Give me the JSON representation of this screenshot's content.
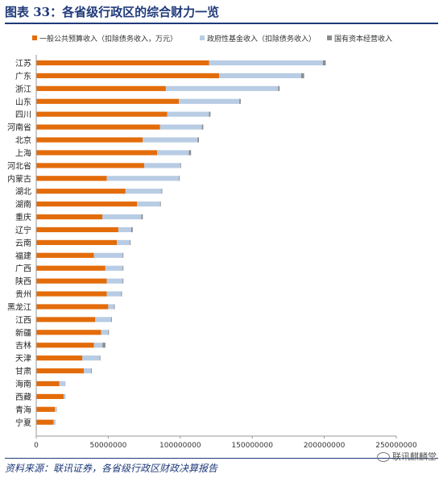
{
  "title": "图表 33：各省级行政区的综合财力一览",
  "source": "资料来源：联讯证券，各省级行政区财政决算报告",
  "watermark": "联讯麒麟堂",
  "chart_data": {
    "type": "bar",
    "orientation": "horizontal",
    "stacked": true,
    "categories": [
      "江苏",
      "广东",
      "浙江",
      "山东",
      "四川",
      "河南省",
      "北京",
      "上海",
      "河北省",
      "内蒙古",
      "湖北",
      "湖南",
      "重庆",
      "辽宁",
      "云南",
      "福建",
      "广西",
      "陕西",
      "贵州",
      "黑龙江",
      "江西",
      "新疆",
      "吉林",
      "天津",
      "甘肃",
      "海南",
      "西藏",
      "青海",
      "宁夏"
    ],
    "series": [
      {
        "name": "一般公共预算收入（扣除债务收入，万元）",
        "color": "#e36c0a",
        "values": [
          120000000,
          127000000,
          90000000,
          99000000,
          91000000,
          86000000,
          74000000,
          84000000,
          75000000,
          49000000,
          62000000,
          70000000,
          46000000,
          57000000,
          56000000,
          40000000,
          48000000,
          49000000,
          49000000,
          50000000,
          41000000,
          45000000,
          40000000,
          32000000,
          33000000,
          16000000,
          19000000,
          13000000,
          12000000
        ]
      },
      {
        "name": "政府性基金收入（扣除债务收入）",
        "color": "#b8cce4",
        "values": [
          79000000,
          57000000,
          78000000,
          42000000,
          29000000,
          29000000,
          38000000,
          22000000,
          25000000,
          50000000,
          25000000,
          16000000,
          27000000,
          9000000,
          9000000,
          20000000,
          12000000,
          11000000,
          10000000,
          4000000,
          11000000,
          5000000,
          6000000,
          12000000,
          5000000,
          4000000,
          1000000,
          1000000,
          1000000
        ]
      },
      {
        "name": "国有资本经营收入",
        "color": "#8c8c8c",
        "values": [
          2000000,
          2000000,
          1000000,
          1000000,
          1000000,
          1000000,
          1000000,
          1500000,
          500000,
          500000,
          500000,
          500000,
          1000000,
          1000000,
          500000,
          500000,
          500000,
          500000,
          500000,
          500000,
          500000,
          500000,
          2000000,
          500000,
          500000,
          200000,
          200000,
          200000,
          200000
        ]
      }
    ],
    "xlim": [
      0,
      250000000
    ],
    "xticks": [
      "0",
      "50000000",
      "100000000",
      "150000000",
      "200000000",
      "250000000"
    ],
    "legend_position": "top",
    "grid": false
  }
}
